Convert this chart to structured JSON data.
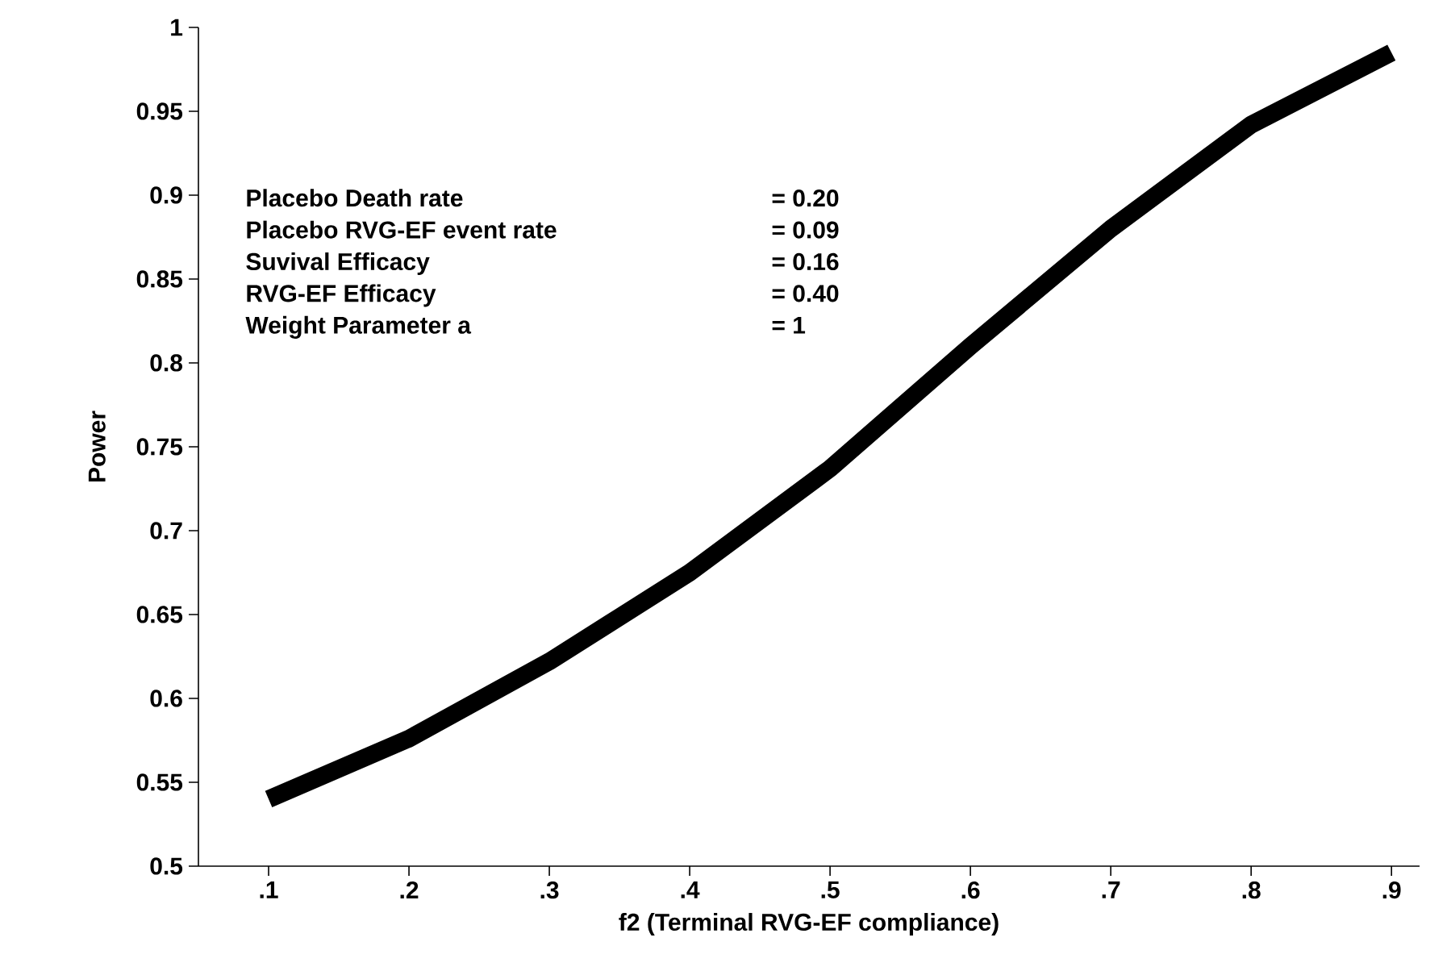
{
  "chart_data": {
    "type": "line",
    "xlabel": "f2 (Terminal RVG-EF compliance)",
    "ylabel": "Power",
    "x": [
      0.1,
      0.2,
      0.3,
      0.4,
      0.5,
      0.6,
      0.7,
      0.8,
      0.9
    ],
    "series": [
      {
        "color": "#000000",
        "values": [
          0.54,
          0.576,
          0.622,
          0.675,
          0.737,
          0.81,
          0.88,
          0.942,
          0.985
        ]
      }
    ],
    "xlim": [
      0.05,
      0.92
    ],
    "ylim": [
      0.5,
      1
    ],
    "xticks": [
      {
        "value": 0.1,
        "label": ".1"
      },
      {
        "value": 0.2,
        "label": ".2"
      },
      {
        "value": 0.3,
        "label": ".3"
      },
      {
        "value": 0.4,
        "label": ".4"
      },
      {
        "value": 0.5,
        "label": ".5"
      },
      {
        "value": 0.6,
        "label": ".6"
      },
      {
        "value": 0.7,
        "label": ".7"
      },
      {
        "value": 0.8,
        "label": ".8"
      },
      {
        "value": 0.9,
        "label": ".9"
      }
    ],
    "yticks": [
      0.5,
      0.55,
      0.6,
      0.65,
      0.7,
      0.75,
      0.8,
      0.85,
      0.9,
      0.95,
      1
    ],
    "grid": false,
    "marker": "none",
    "line_style": "solid",
    "annotations": [
      "Placebo Death rate",
      "= 0.20",
      "Placebo RVG-EF event rate",
      "= 0.09",
      "Suvival Efficacy",
      "= 0.16",
      "RVG-EF Efficacy",
      "= 0.40",
      "Weight Parameter a",
      "= 1"
    ]
  }
}
